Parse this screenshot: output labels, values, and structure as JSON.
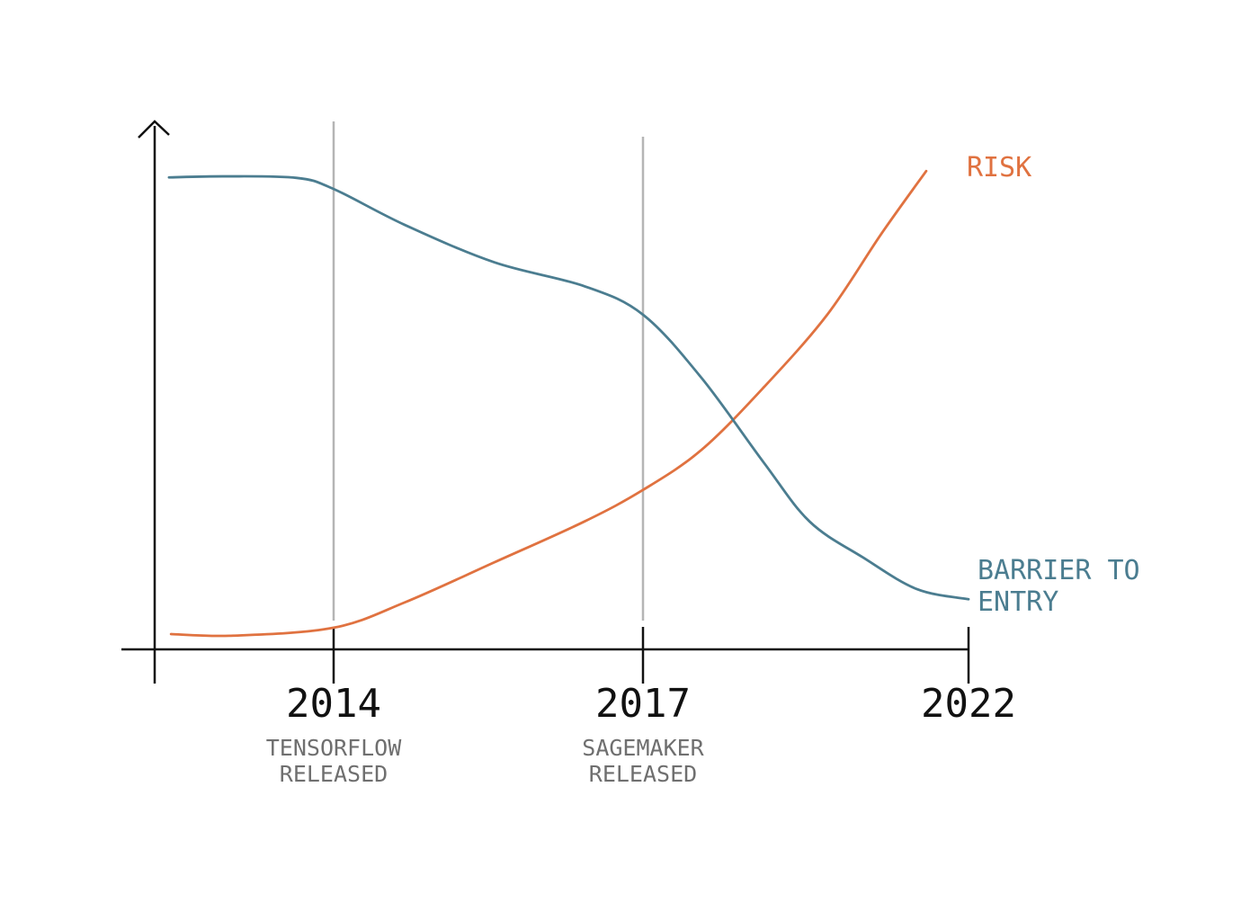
{
  "chart_data": {
    "type": "line",
    "xlim": [
      2012.25,
      2022
    ],
    "ylim": [
      0,
      100
    ],
    "xticks": [
      2014,
      2017,
      2022
    ],
    "series": [
      {
        "name": "RISK",
        "color": "#e07240",
        "x": [
          2012.41,
          2013.02,
          2014,
          2014.69,
          2015.56,
          2016.43,
          2017,
          2017.9,
          2018.86,
          2019.83,
          2020.66,
          2021.35
        ],
        "values": [
          2.9,
          2.6,
          4.1,
          8.9,
          16.5,
          24.2,
          30.2,
          37.8,
          49.7,
          63.4,
          78.7,
          90.6
        ]
      },
      {
        "name": "BARRIER TO ENTRY",
        "color": "#4b7d90",
        "x": [
          2012.39,
          2012.94,
          2013.64,
          2014,
          2014.69,
          2015.56,
          2016.43,
          2017,
          2017.9,
          2018.86,
          2019.56,
          2020.38,
          2021.21,
          2022
        ],
        "values": [
          89.4,
          89.6,
          89.3,
          87.2,
          80.4,
          73.3,
          68.8,
          63.4,
          51.4,
          35.3,
          24.2,
          17.4,
          11.4,
          9.5
        ]
      }
    ],
    "annotations": [
      {
        "x": 2014,
        "text": "TENSORFLOW RELEASED"
      },
      {
        "x": 2017,
        "text": "SAGEMAKER RELEASED"
      }
    ]
  }
}
